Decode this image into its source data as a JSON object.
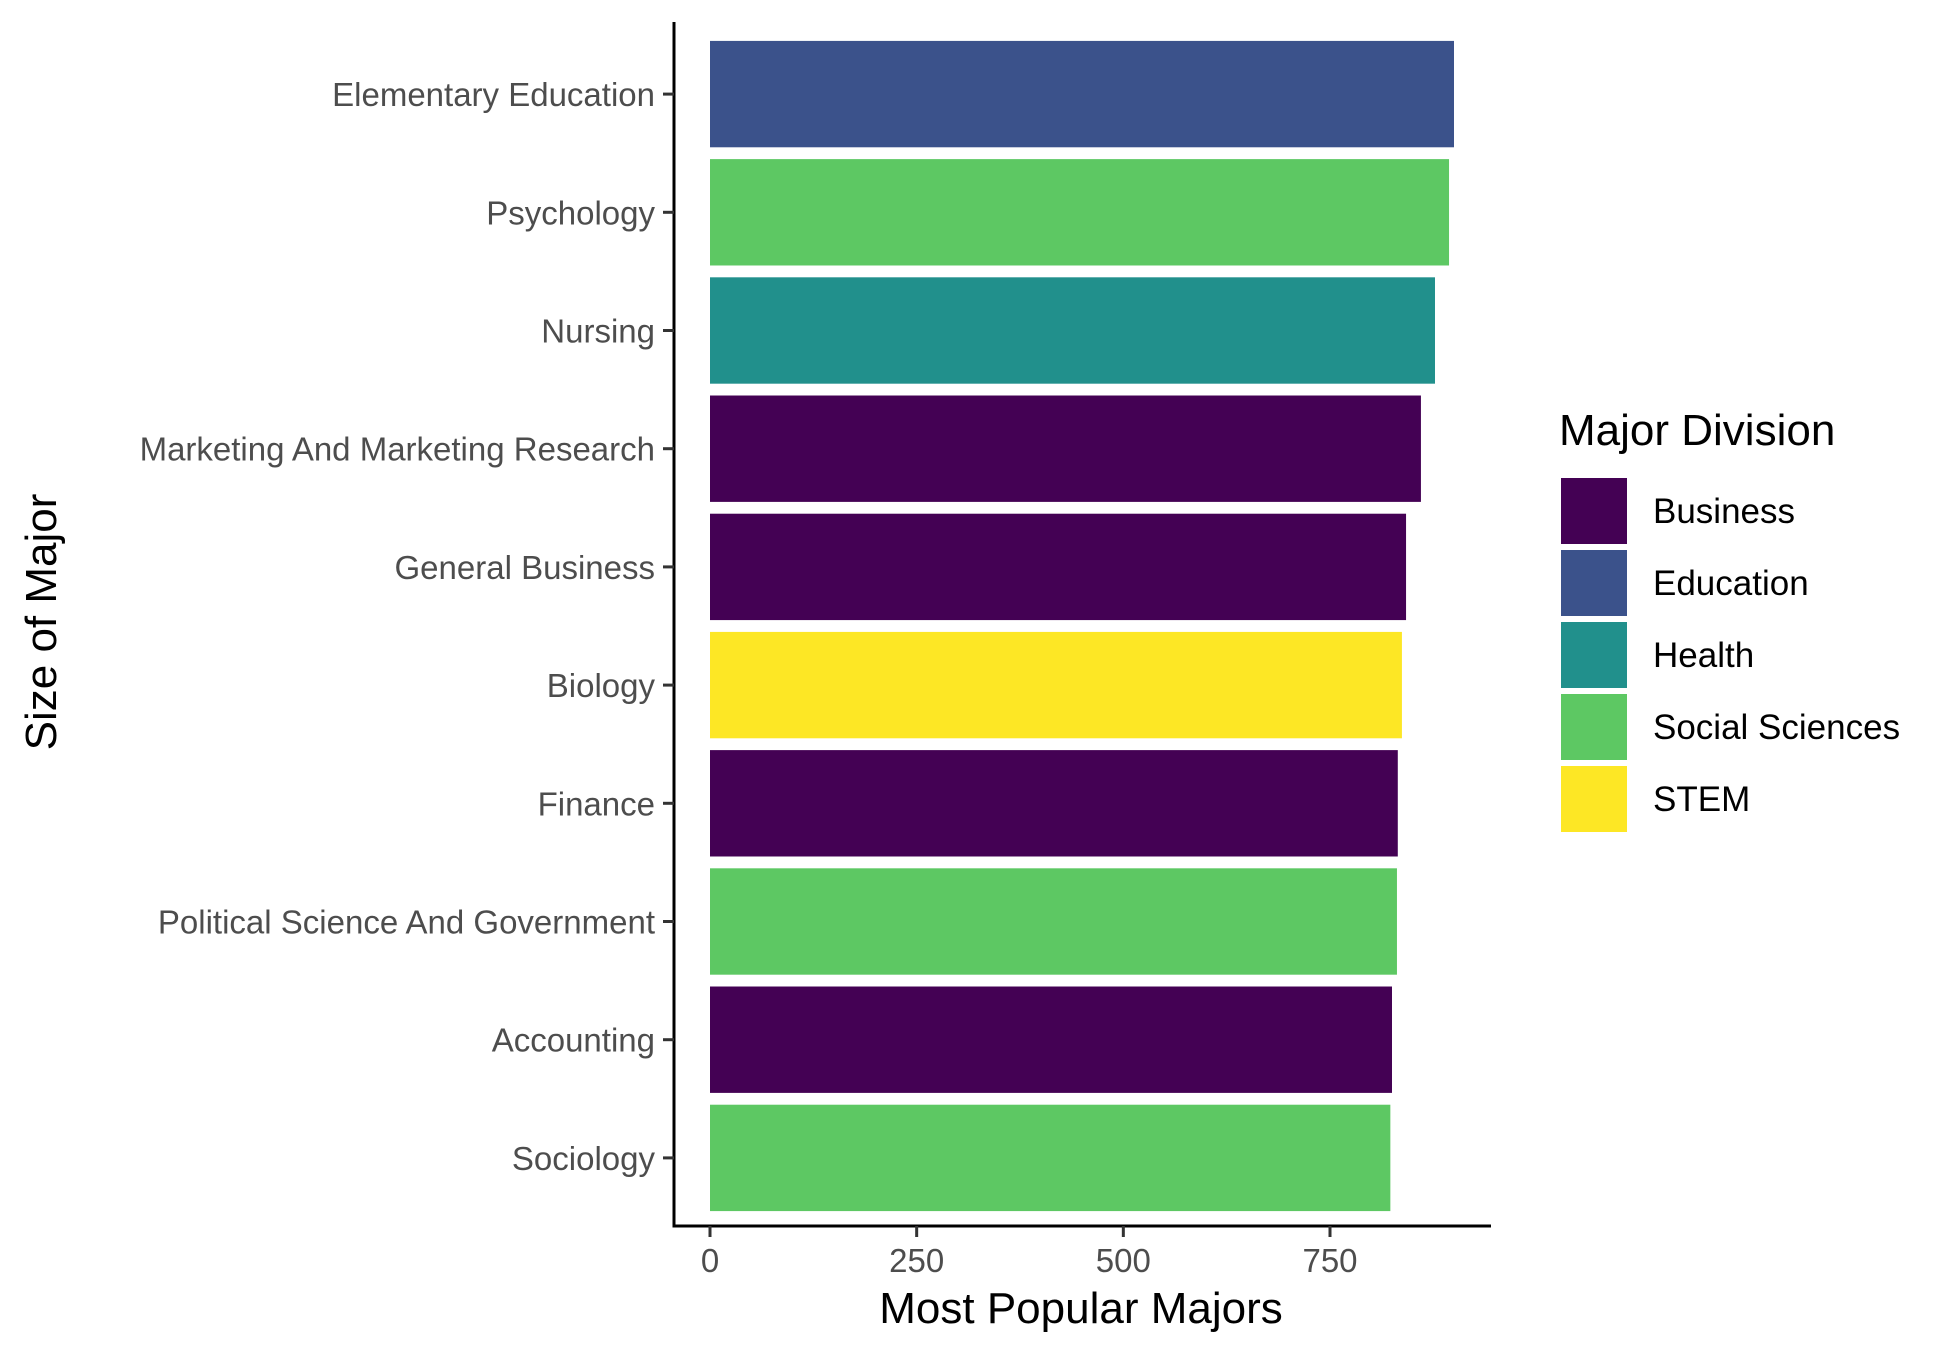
{
  "chart_data": {
    "type": "bar",
    "orientation": "horizontal",
    "xlabel": "Most Popular Majors",
    "ylabel": "Size of Major",
    "xlim": [
      -90,
      1890
    ],
    "x_ticks": [
      0,
      250,
      500,
      750
    ],
    "x_tick_labels": [
      "0",
      "250",
      "500",
      "750"
    ],
    "grid": false,
    "legend": {
      "title": "Major Division",
      "position": "right",
      "entries": [
        {
          "label": "Business",
          "color": "#440154"
        },
        {
          "label": "Education",
          "color": "#3B528B"
        },
        {
          "label": "Health",
          "color": "#21908C"
        },
        {
          "label": "Social Sciences",
          "color": "#5DC863"
        },
        {
          "label": "STEM",
          "color": "#FDE725"
        }
      ]
    },
    "categories": [
      "Elementary Education",
      "Psychology",
      "Nursing",
      "Marketing And Marketing Research",
      "General Business",
      "Biology",
      "Finance",
      "Political Science And Government",
      "Accounting",
      "Sociology"
    ],
    "values": [
      900,
      894,
      877,
      860,
      842,
      837,
      832,
      831,
      825,
      823
    ],
    "divisions": [
      "Education",
      "Social Sciences",
      "Health",
      "Business",
      "Business",
      "STEM",
      "Business",
      "Social Sciences",
      "Business",
      "Social Sciences"
    ]
  }
}
